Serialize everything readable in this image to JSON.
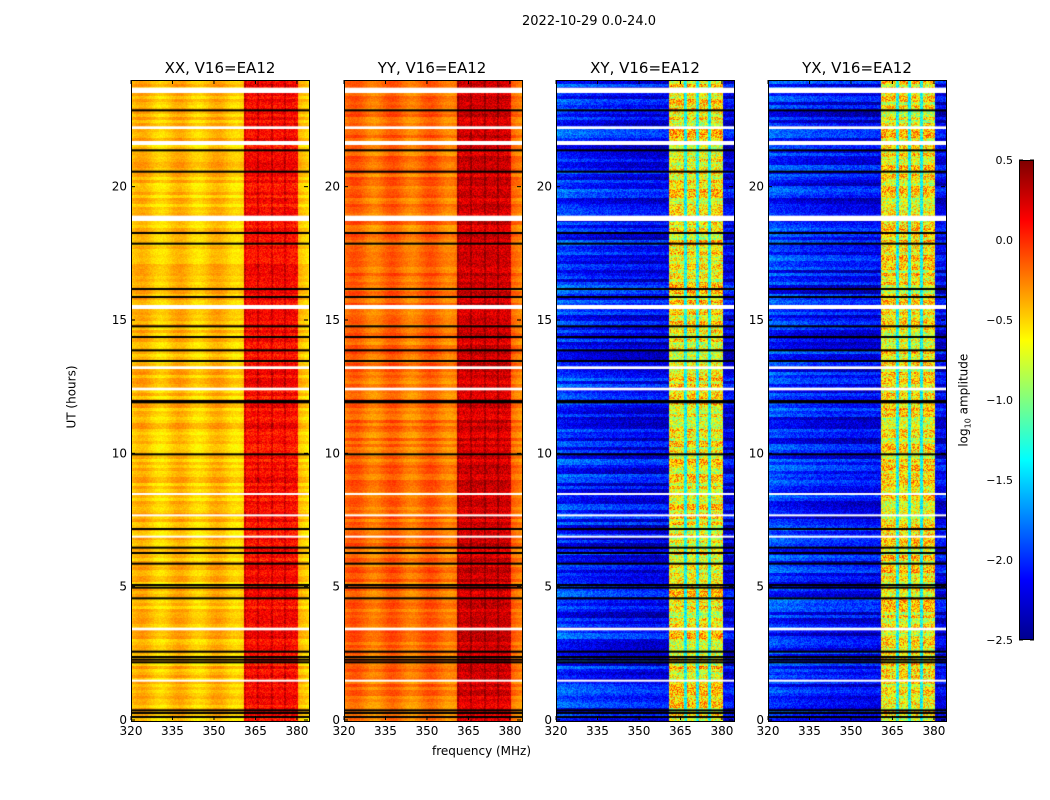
{
  "chart_data": {
    "type": "heatmap",
    "suptitle": "2022-10-29 0.0-24.0",
    "xlabel": "frequency (MHz)",
    "ylabel": "UT (hours)",
    "xlim": [
      320,
      384
    ],
    "ylim": [
      0,
      24
    ],
    "xticks": [
      320,
      335,
      350,
      365,
      380
    ],
    "yticks": [
      0,
      5,
      10,
      15,
      20
    ],
    "colormap": "jet",
    "colorbar": {
      "label_prefix": "log",
      "label_sub": "10",
      "label_suffix": " amplitude",
      "range": [
        -2.5,
        0.5
      ],
      "ticks": [
        "0.5",
        "0.0",
        "−0.5",
        "−1.0",
        "−1.5",
        "−2.0",
        "−2.5"
      ],
      "tick_values": [
        0.5,
        0.0,
        -0.5,
        -1.0,
        -1.5,
        -2.0,
        -2.5
      ]
    },
    "panels": [
      {
        "title": "XX, V16=EA12",
        "base_level": -0.45,
        "band_level": 0.1
      },
      {
        "title": "YY, V16=EA12",
        "base_level": -0.2,
        "band_level": 0.25
      },
      {
        "title": "XY, V16=EA12",
        "base_level": -2.2,
        "band_level": -0.6
      },
      {
        "title": "YX, V16=EA12",
        "base_level": -2.2,
        "band_level": -0.6
      }
    ],
    "bright_band_mhz": [
      360.3,
      379.8
    ],
    "cross_pol_dark_channels_mhz": [
      366.4,
      370.8,
      375.1
    ],
    "flagged_white_hours": [
      [
        23.55,
        23.75
      ],
      [
        22.2,
        22.3
      ],
      [
        21.6,
        21.75
      ],
      [
        18.75,
        18.95
      ],
      [
        15.45,
        15.6
      ],
      [
        13.2,
        13.3
      ],
      [
        12.4,
        12.5
      ],
      [
        8.5,
        8.55
      ],
      [
        7.7,
        7.75
      ],
      [
        6.9,
        6.95
      ],
      [
        3.4,
        3.5
      ],
      [
        1.5,
        1.55
      ]
    ],
    "flagged_black_hours": [
      22.9,
      21.4,
      20.6,
      18.3,
      17.9,
      16.2,
      15.9,
      14.8,
      14.4,
      13.9,
      13.5,
      12.0,
      11.95,
      10.0,
      7.2,
      6.5,
      6.3,
      5.9,
      5.1,
      5.0,
      4.6,
      2.6,
      2.4,
      2.3,
      2.2,
      0.4,
      0.3,
      0.15
    ]
  }
}
